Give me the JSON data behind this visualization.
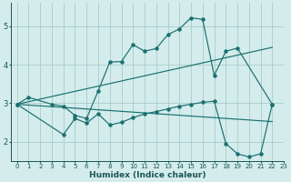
{
  "xlabel": "Humidex (Indice chaleur)",
  "background_color": "#d4ecec",
  "grid_color": "#a8cccc",
  "line_color": "#1a7070",
  "xlim": [
    -0.5,
    23
  ],
  "ylim": [
    1.5,
    5.6
  ],
  "yticks": [
    2,
    3,
    4,
    5
  ],
  "xticks": [
    0,
    1,
    2,
    3,
    4,
    5,
    6,
    7,
    8,
    9,
    10,
    11,
    12,
    13,
    14,
    15,
    16,
    17,
    18,
    19,
    20,
    21,
    22,
    23
  ],
  "line_upper_jagged": [
    [
      0,
      2.97
    ],
    [
      1,
      3.15
    ],
    [
      3,
      2.97
    ],
    [
      4,
      2.92
    ],
    [
      5,
      2.68
    ],
    [
      6,
      2.6
    ],
    [
      7,
      3.32
    ],
    [
      8,
      4.07
    ],
    [
      9,
      4.08
    ],
    [
      10,
      4.52
    ],
    [
      11,
      4.35
    ],
    [
      12,
      4.42
    ],
    [
      13,
      4.78
    ],
    [
      14,
      4.93
    ],
    [
      15,
      5.22
    ],
    [
      16,
      5.18
    ],
    [
      17,
      3.72
    ],
    [
      18,
      4.35
    ],
    [
      19,
      4.43
    ],
    [
      22,
      2.97
    ]
  ],
  "line_lower_jagged": [
    [
      0,
      2.97
    ],
    [
      4,
      2.18
    ],
    [
      5,
      2.6
    ],
    [
      6,
      2.48
    ],
    [
      7,
      2.72
    ],
    [
      8,
      2.43
    ],
    [
      9,
      2.5
    ],
    [
      10,
      2.62
    ],
    [
      11,
      2.72
    ],
    [
      12,
      2.78
    ],
    [
      13,
      2.85
    ],
    [
      14,
      2.92
    ],
    [
      15,
      2.97
    ],
    [
      16,
      3.02
    ],
    [
      17,
      3.05
    ],
    [
      18,
      1.95
    ],
    [
      19,
      1.68
    ],
    [
      20,
      1.6
    ],
    [
      21,
      1.68
    ],
    [
      22,
      2.97
    ]
  ],
  "line_diag_upper": [
    [
      0,
      2.97
    ],
    [
      22,
      4.45
    ]
  ],
  "line_diag_lower": [
    [
      0,
      2.97
    ],
    [
      22,
      2.52
    ]
  ]
}
